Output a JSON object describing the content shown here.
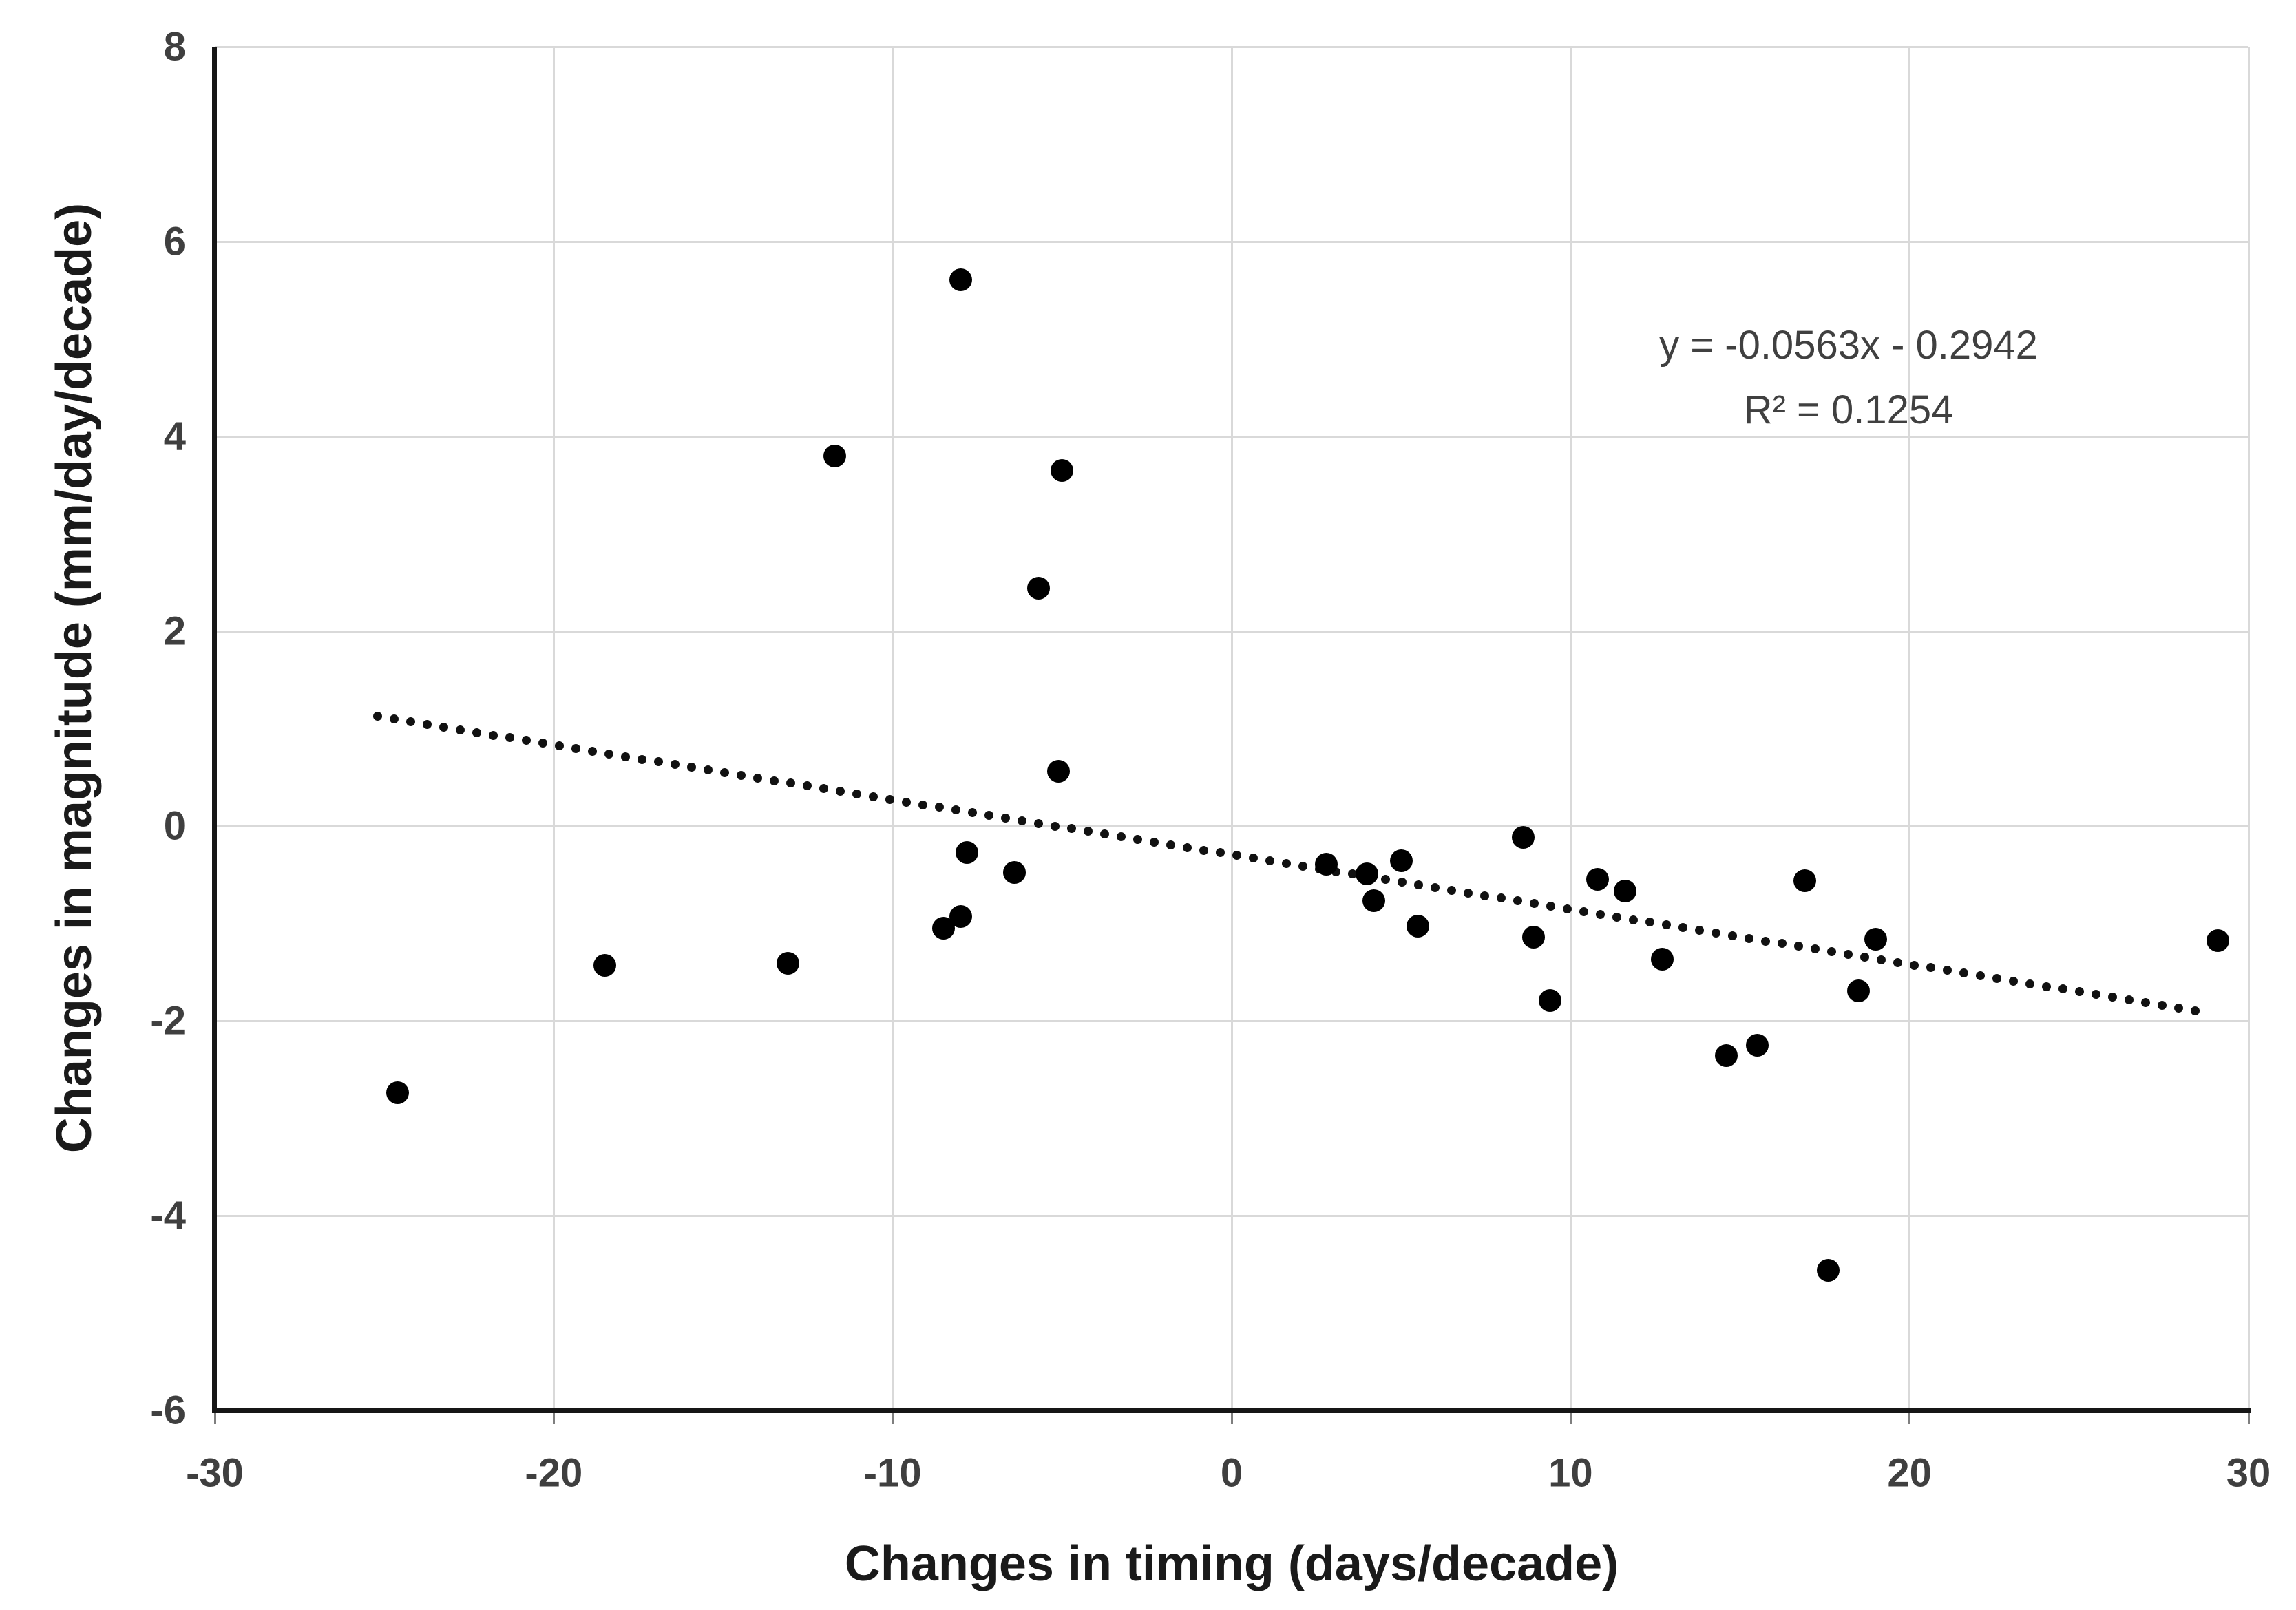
{
  "chart_data": {
    "type": "scatter",
    "title": "",
    "xlabel": "Changes in timing (days/decade)",
    "ylabel": "Changes in magnitude (mm/day/decade)",
    "xlim": [
      -30,
      30
    ],
    "ylim": [
      -6,
      8
    ],
    "x_ticks": [
      "-30",
      "-20",
      "-10",
      "0",
      "10",
      "20",
      "30"
    ],
    "x_tick_values": [
      -30,
      -20,
      -10,
      0,
      10,
      20,
      30
    ],
    "y_ticks": [
      "8",
      "6",
      "4",
      "2",
      "0",
      "-2",
      "-4",
      "-6"
    ],
    "y_tick_values": [
      8,
      6,
      4,
      2,
      0,
      -2,
      -4,
      -6
    ],
    "grid": true,
    "legend": "none",
    "points": [
      [
        -24.6,
        -2.74
      ],
      [
        -18.5,
        -1.43
      ],
      [
        -13.1,
        -1.41
      ],
      [
        -11.7,
        3.8
      ],
      [
        -8.0,
        5.61
      ],
      [
        -8.5,
        -1.05
      ],
      [
        -8.0,
        -0.93
      ],
      [
        -7.8,
        -0.27
      ],
      [
        -6.4,
        -0.48
      ],
      [
        -5.7,
        2.44
      ],
      [
        -5.0,
        3.65
      ],
      [
        -5.1,
        0.56
      ],
      [
        2.8,
        -0.39
      ],
      [
        4.0,
        -0.49
      ],
      [
        4.2,
        -0.77
      ],
      [
        5.0,
        -0.36
      ],
      [
        5.5,
        -1.03
      ],
      [
        8.6,
        -0.12
      ],
      [
        8.9,
        -1.14
      ],
      [
        9.4,
        -1.79
      ],
      [
        10.8,
        -0.55
      ],
      [
        11.6,
        -0.67
      ],
      [
        12.7,
        -1.37
      ],
      [
        14.6,
        -2.36
      ],
      [
        15.5,
        -2.25
      ],
      [
        16.9,
        -0.56
      ],
      [
        17.6,
        -4.56
      ],
      [
        18.5,
        -1.69
      ],
      [
        19.0,
        -1.16
      ],
      [
        29.1,
        -1.18
      ]
    ],
    "trendline": {
      "slope": -0.0563,
      "intercept": -0.2942,
      "x_start": -25.2,
      "x_end": 28.9,
      "style": "dotted"
    },
    "annotation": {
      "line1": "y = -0.0563x - 0.2942",
      "line2": "R² = 0.1254",
      "x": 18.2,
      "y": 4.6
    },
    "colors": {
      "marker": "#000000",
      "trend": "#111111",
      "gridline": "#d9d9d9",
      "axis": "#161616",
      "tick_label": "#3f3f3f",
      "axis_title": "#1a1a1a",
      "annotation_text": "#404040",
      "background": "#ffffff"
    }
  }
}
